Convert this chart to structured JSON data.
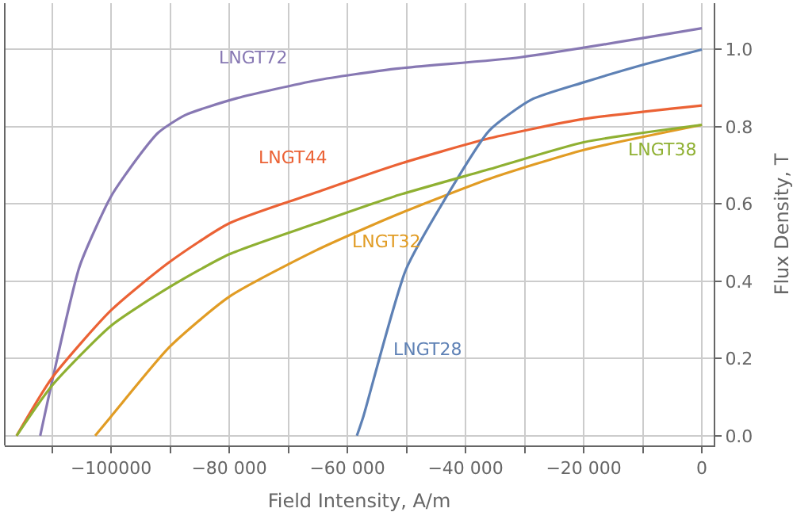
{
  "chart_data": {
    "type": "line",
    "xlabel": "Field Intensity, A/m",
    "ylabel": "Flux Density, T",
    "xlim": [
      -118000,
      2000
    ],
    "ylim": [
      -0.025,
      1.12
    ],
    "xticks": [
      {
        "value": -110000,
        "label": null
      },
      {
        "value": -100000,
        "label": "−100000"
      },
      {
        "value": -90000,
        "label": null
      },
      {
        "value": -80000,
        "label": "−80 000"
      },
      {
        "value": -70000,
        "label": null
      },
      {
        "value": -60000,
        "label": "−60 000"
      },
      {
        "value": -50000,
        "label": null
      },
      {
        "value": -40000,
        "label": "−40 000"
      },
      {
        "value": -30000,
        "label": null
      },
      {
        "value": -20000,
        "label": "−20 000"
      },
      {
        "value": -10000,
        "label": null
      },
      {
        "value": 0,
        "label": "0"
      }
    ],
    "yticks": [
      {
        "value": 0,
        "label": "0.0"
      },
      {
        "value": 0.2,
        "label": "0.2"
      },
      {
        "value": 0.4,
        "label": "0.4"
      },
      {
        "value": 0.6,
        "label": "0.6"
      },
      {
        "value": 0.8,
        "label": "0.8"
      },
      {
        "value": 1.0,
        "label": "1.0"
      }
    ],
    "grid": true,
    "legend": false,
    "marker": "none",
    "line_style": "solid",
    "series": [
      {
        "name": "LNGT72",
        "color": "#8778b3",
        "x": [
          -112000,
          -110000,
          -105300,
          -100000,
          -95500,
          -92000,
          -87500,
          -78700,
          -65300,
          -52000,
          -30700,
          0
        ],
        "values": [
          0,
          0.14,
          0.44,
          0.62,
          0.72,
          0.785,
          0.83,
          0.874,
          0.92,
          0.95,
          0.98,
          1.055
        ]
      },
      {
        "name": "LNGT44",
        "color": "#eb6235",
        "x": [
          -116000,
          -110000,
          -100000,
          -90100,
          -80000,
          -65300,
          -52000,
          -36000,
          -20000,
          0
        ],
        "values": [
          0,
          0.15,
          0.325,
          0.45,
          0.55,
          0.63,
          0.7,
          0.77,
          0.82,
          0.855
        ]
      },
      {
        "name": "LNGT32",
        "color": "#e19c24",
        "x": [
          -102700,
          -100000,
          -90100,
          -80000,
          -65300,
          -52000,
          -36000,
          -20000,
          0
        ],
        "values": [
          0,
          0.05,
          0.23,
          0.36,
          0.48,
          0.57,
          0.665,
          0.74,
          0.805
        ]
      },
      {
        "name": "LNGT28",
        "color": "#5e81b5",
        "x": [
          -58400,
          -57300,
          -50100,
          -43200,
          -36000,
          -28900,
          -20000,
          -10100,
          0
        ],
        "values": [
          0,
          0.05,
          0.43,
          0.62,
          0.79,
          0.87,
          0.915,
          0.96,
          1.0
        ]
      },
      {
        "name": "LNGT38",
        "color": "#8fb032",
        "x": [
          -116000,
          -110000,
          -100000,
          -90100,
          -80000,
          -65300,
          -52000,
          -36000,
          -20000,
          0
        ],
        "values": [
          0,
          0.13,
          0.285,
          0.385,
          0.47,
          0.55,
          0.62,
          0.69,
          0.76,
          0.805
        ]
      }
    ]
  }
}
